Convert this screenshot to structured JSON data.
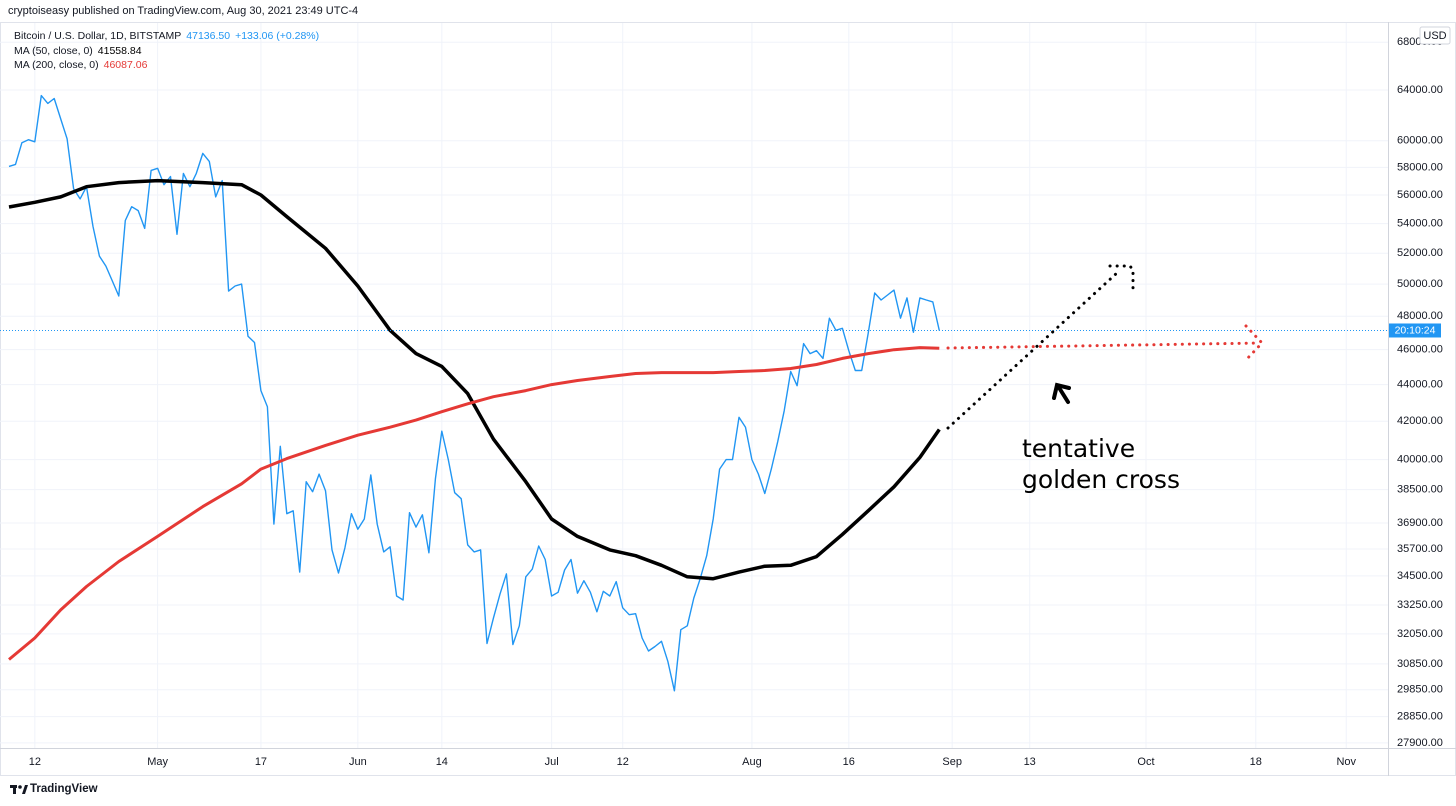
{
  "header": "cryptoiseasy published on TradingView.com, Aug 30, 2021 23:49 UTC-4",
  "footer": "TradingView",
  "chart_data": {
    "type": "line",
    "currency": "USD",
    "countdown": "20:10:24",
    "annotations": [
      "tentative",
      "golden cross"
    ],
    "log_scale": true,
    "grid": true,
    "x": [
      "2021-04-08",
      "2021-04-09",
      "2021-04-10",
      "2021-04-11",
      "2021-04-12",
      "2021-04-13",
      "2021-04-14",
      "2021-04-15",
      "2021-04-16",
      "2021-04-17",
      "2021-04-18",
      "2021-04-19",
      "2021-04-20",
      "2021-04-21",
      "2021-04-22",
      "2021-04-23",
      "2021-04-24",
      "2021-04-25",
      "2021-04-26",
      "2021-04-27",
      "2021-04-28",
      "2021-04-29",
      "2021-04-30",
      "2021-05-01",
      "2021-05-02",
      "2021-05-03",
      "2021-05-04",
      "2021-05-05",
      "2021-05-06",
      "2021-05-07",
      "2021-05-08",
      "2021-05-09",
      "2021-05-10",
      "2021-05-11",
      "2021-05-12",
      "2021-05-13",
      "2021-05-14",
      "2021-05-15",
      "2021-05-16",
      "2021-05-17",
      "2021-05-18",
      "2021-05-19",
      "2021-05-20",
      "2021-05-21",
      "2021-05-22",
      "2021-05-23",
      "2021-05-24",
      "2021-05-25",
      "2021-05-26",
      "2021-05-27",
      "2021-05-28",
      "2021-05-29",
      "2021-05-30",
      "2021-05-31",
      "2021-06-01",
      "2021-06-02",
      "2021-06-03",
      "2021-06-04",
      "2021-06-05",
      "2021-06-06",
      "2021-06-07",
      "2021-06-08",
      "2021-06-09",
      "2021-06-10",
      "2021-06-11",
      "2021-06-12",
      "2021-06-13",
      "2021-06-14",
      "2021-06-15",
      "2021-06-16",
      "2021-06-17",
      "2021-06-18",
      "2021-06-19",
      "2021-06-20",
      "2021-06-21",
      "2021-06-22",
      "2021-06-23",
      "2021-06-24",
      "2021-06-25",
      "2021-06-26",
      "2021-06-27",
      "2021-06-28",
      "2021-06-29",
      "2021-06-30",
      "2021-07-01",
      "2021-07-02",
      "2021-07-03",
      "2021-07-04",
      "2021-07-05",
      "2021-07-06",
      "2021-07-07",
      "2021-07-08",
      "2021-07-09",
      "2021-07-10",
      "2021-07-11",
      "2021-07-12",
      "2021-07-13",
      "2021-07-14",
      "2021-07-15",
      "2021-07-16",
      "2021-07-17",
      "2021-07-18",
      "2021-07-19",
      "2021-07-20",
      "2021-07-21",
      "2021-07-22",
      "2021-07-23",
      "2021-07-24",
      "2021-07-25",
      "2021-07-26",
      "2021-07-27",
      "2021-07-28",
      "2021-07-29",
      "2021-07-30",
      "2021-07-31",
      "2021-08-01",
      "2021-08-02",
      "2021-08-03",
      "2021-08-04",
      "2021-08-05",
      "2021-08-06",
      "2021-08-07",
      "2021-08-08",
      "2021-08-09",
      "2021-08-10",
      "2021-08-11",
      "2021-08-12",
      "2021-08-13",
      "2021-08-14",
      "2021-08-15",
      "2021-08-16",
      "2021-08-17",
      "2021-08-18",
      "2021-08-19",
      "2021-08-20",
      "2021-08-21",
      "2021-08-22",
      "2021-08-23",
      "2021-08-24",
      "2021-08-25",
      "2021-08-26",
      "2021-08-27",
      "2021-08-28",
      "2021-08-29",
      "2021-08-30"
    ],
    "series": [
      {
        "name": "Bitcoin / U.S. Dollar, 1D, BITSTAMP",
        "color": "#2196f3",
        "legend_value": "47136.50",
        "legend_change": "+133.06 (+0.28%)",
        "values": [
          58070,
          58220,
          59850,
          60080,
          59920,
          63540,
          62920,
          63310,
          61690,
          60150,
          56450,
          55720,
          56590,
          53800,
          51810,
          51160,
          50190,
          49250,
          54210,
          55170,
          54900,
          53670,
          57780,
          57930,
          56740,
          57330,
          53270,
          57560,
          56590,
          57560,
          59040,
          58440,
          55860,
          57030,
          49560,
          49880,
          50000,
          46790,
          46420,
          43670,
          42780,
          36850,
          40680,
          37340,
          37480,
          34670,
          38890,
          38400,
          39270,
          38450,
          35660,
          34630,
          35750,
          37340,
          36610,
          37090,
          39230,
          36850,
          35570,
          35800,
          33630,
          33460,
          37390,
          36710,
          37290,
          35530,
          39030,
          41470,
          40000,
          38350,
          38060,
          35890,
          35570,
          35660,
          31660,
          32710,
          33710,
          34590,
          31620,
          32380,
          34460,
          34800,
          35840,
          35230,
          33630,
          33790,
          34760,
          35230,
          33750,
          34290,
          33790,
          32960,
          33830,
          33630,
          34250,
          33130,
          32840,
          32880,
          31880,
          31360,
          31540,
          31750,
          30940,
          29810,
          32220,
          32380,
          33540,
          34380,
          35400,
          37090,
          39520,
          40000,
          40000,
          42210,
          41680,
          40000,
          39270,
          38310,
          39520,
          40940,
          42560,
          44740,
          43940,
          46360,
          45770,
          45940,
          45490,
          47880,
          47150,
          47270,
          45940,
          44800,
          44800,
          46970,
          49440,
          49000,
          49310,
          49620,
          47880,
          49130,
          47030,
          49130,
          49000,
          48880,
          47136.5
        ]
      },
      {
        "name": "MA (50, close, 0)",
        "color": "#000000",
        "legend_value": "41558.84",
        "x": [
          "2021-04-08",
          "2021-04-12",
          "2021-04-16",
          "2021-04-20",
          "2021-04-25",
          "2021-05-01",
          "2021-05-08",
          "2021-05-14",
          "2021-05-17",
          "2021-05-21",
          "2021-05-27",
          "2021-06-01",
          "2021-06-06",
          "2021-06-10",
          "2021-06-14",
          "2021-06-18",
          "2021-06-22",
          "2021-06-27",
          "2021-07-01",
          "2021-07-05",
          "2021-07-10",
          "2021-07-14",
          "2021-07-18",
          "2021-07-22",
          "2021-07-26",
          "2021-07-30",
          "2021-08-03",
          "2021-08-07",
          "2021-08-11",
          "2021-08-15",
          "2021-08-19",
          "2021-08-23",
          "2021-08-27",
          "2021-08-30"
        ],
        "values": [
          55150,
          55480,
          55860,
          56590,
          56890,
          57030,
          56890,
          56740,
          56000,
          54480,
          52330,
          49880,
          47150,
          45770,
          45030,
          43500,
          41050,
          38890,
          37090,
          36280,
          35660,
          35400,
          34970,
          34460,
          34380,
          34670,
          34930,
          34970,
          35360,
          36370,
          37480,
          38640,
          40110,
          41558.84
        ]
      },
      {
        "name": "MA (200, close, 0)",
        "color": "#e53935",
        "legend_value": "46087.06",
        "x": [
          "2021-04-08",
          "2021-04-12",
          "2021-04-16",
          "2021-04-20",
          "2021-04-25",
          "2021-05-01",
          "2021-05-08",
          "2021-05-14",
          "2021-05-17",
          "2021-05-21",
          "2021-05-27",
          "2021-06-01",
          "2021-06-06",
          "2021-06-10",
          "2021-06-14",
          "2021-06-18",
          "2021-06-22",
          "2021-06-27",
          "2021-07-01",
          "2021-07-05",
          "2021-07-10",
          "2021-07-14",
          "2021-07-18",
          "2021-07-22",
          "2021-07-26",
          "2021-07-30",
          "2021-08-03",
          "2021-08-07",
          "2021-08-11",
          "2021-08-15",
          "2021-08-19",
          "2021-08-23",
          "2021-08-27",
          "2021-08-30"
        ],
        "values": [
          31020,
          31880,
          33040,
          34040,
          35140,
          36280,
          37680,
          38790,
          39520,
          40050,
          40730,
          41260,
          41680,
          42060,
          42510,
          42940,
          43330,
          43670,
          44000,
          44230,
          44460,
          44630,
          44680,
          44680,
          44680,
          44740,
          44800,
          44910,
          45140,
          45490,
          45770,
          46000,
          46120,
          46087.06
        ]
      }
    ],
    "xlim": [
      "2021-04-08",
      "2021-11-07"
    ],
    "xticks": [
      {
        "value": "2021-04-12",
        "label": "12"
      },
      {
        "value": "2021-05-01",
        "label": "May"
      },
      {
        "value": "2021-05-17",
        "label": "17"
      },
      {
        "value": "2021-06-01",
        "label": "Jun"
      },
      {
        "value": "2021-06-14",
        "label": "14"
      },
      {
        "value": "2021-07-01",
        "label": "Jul"
      },
      {
        "value": "2021-07-12",
        "label": "12"
      },
      {
        "value": "2021-08-01",
        "label": "Aug"
      },
      {
        "value": "2021-08-16",
        "label": "16"
      },
      {
        "value": "2021-09-01",
        "label": "Sep"
      },
      {
        "value": "2021-09-13",
        "label": "13"
      },
      {
        "value": "2021-10-01",
        "label": "Oct"
      },
      {
        "value": "2021-10-18",
        "label": "18"
      },
      {
        "value": "2021-11-01",
        "label": "Nov"
      }
    ],
    "ylim": [
      27720,
      69600
    ],
    "yticks": [
      {
        "value": 68000,
        "label": "68000.00"
      },
      {
        "value": 64000,
        "label": "64000.00"
      },
      {
        "value": 60000,
        "label": "60000.00"
      },
      {
        "value": 58000,
        "label": "58000.00"
      },
      {
        "value": 56000,
        "label": "56000.00"
      },
      {
        "value": 54000,
        "label": "54000.00"
      },
      {
        "value": 52000,
        "label": "52000.00"
      },
      {
        "value": 50000,
        "label": "50000.00"
      },
      {
        "value": 48000,
        "label": "48000.00"
      },
      {
        "value": 46000,
        "label": "46000.00"
      },
      {
        "value": 44000,
        "label": "44000.00"
      },
      {
        "value": 42000,
        "label": "42000.00"
      },
      {
        "value": 40000,
        "label": "40000.00"
      },
      {
        "value": 38500,
        "label": "38500.00"
      },
      {
        "value": 36900,
        "label": "36900.00"
      },
      {
        "value": 35700,
        "label": "35700.00"
      },
      {
        "value": 34500,
        "label": "34500.00"
      },
      {
        "value": 33250,
        "label": "33250.00"
      },
      {
        "value": 32050,
        "label": "32050.00"
      },
      {
        "value": 30850,
        "label": "30850.00"
      },
      {
        "value": 29850,
        "label": "29850.00"
      },
      {
        "value": 28850,
        "label": "28850.00"
      },
      {
        "value": 27900,
        "label": "27900.00"
      }
    ]
  }
}
